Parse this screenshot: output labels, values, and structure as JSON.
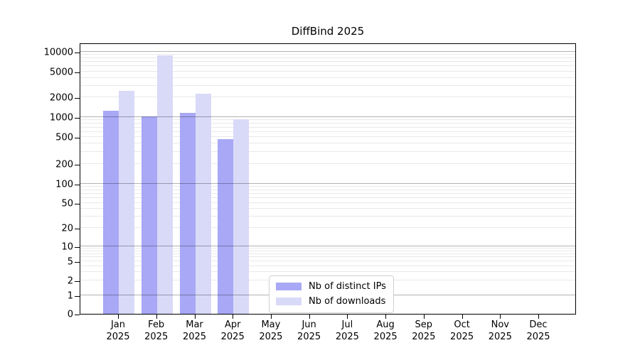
{
  "chart_data": {
    "type": "bar",
    "title": "DiffBind 2025",
    "categories": [
      {
        "month": "Jan",
        "year": "2025"
      },
      {
        "month": "Feb",
        "year": "2025"
      },
      {
        "month": "Mar",
        "year": "2025"
      },
      {
        "month": "Apr",
        "year": "2025"
      },
      {
        "month": "May",
        "year": "2025"
      },
      {
        "month": "Jun",
        "year": "2025"
      },
      {
        "month": "Jul",
        "year": "2025"
      },
      {
        "month": "Aug",
        "year": "2025"
      },
      {
        "month": "Sep",
        "year": "2025"
      },
      {
        "month": "Oct",
        "year": "2025"
      },
      {
        "month": "Nov",
        "year": "2025"
      },
      {
        "month": "Dec",
        "year": "2025"
      }
    ],
    "series": [
      {
        "name": "Nb of distinct IPs",
        "color": "#a8a8f6",
        "values": [
          1250,
          1030,
          1150,
          470,
          0,
          0,
          0,
          0,
          0,
          0,
          0,
          0
        ]
      },
      {
        "name": "Nb of downloads",
        "color": "#d9d9f8",
        "values": [
          2550,
          8900,
          2300,
          940,
          0,
          0,
          0,
          0,
          0,
          0,
          0,
          0
        ]
      }
    ],
    "y_ticks": [
      0,
      1,
      2,
      5,
      10,
      20,
      50,
      100,
      200,
      500,
      1000,
      2000,
      5000,
      10000
    ],
    "y_scale": "symlog",
    "ylim": [
      0,
      14000
    ],
    "grid": true,
    "legend_position": "lower center"
  }
}
